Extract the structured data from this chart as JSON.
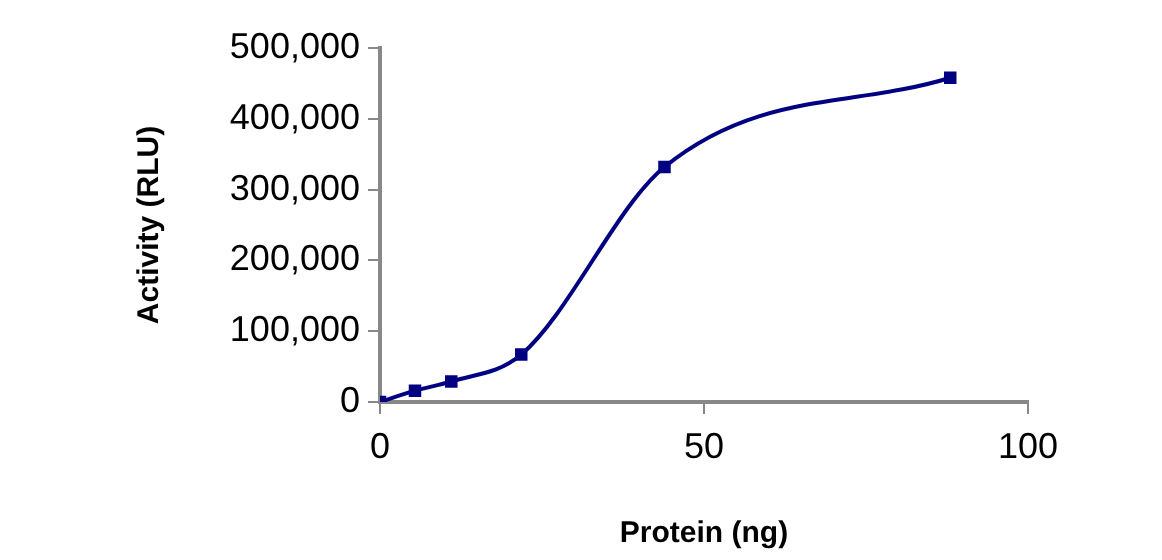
{
  "chart_data": {
    "type": "line",
    "xlabel": "Protein (ng)",
    "ylabel": "Activity (RLU)",
    "x": [
      0,
      5.4,
      11,
      21.8,
      43.9,
      88
    ],
    "series": [
      {
        "color": "#000080",
        "values": [
          0,
          16000,
          29000,
          67000,
          332000,
          458000
        ]
      }
    ],
    "xlim": [
      0,
      100
    ],
    "xticks": [
      0,
      50,
      100
    ],
    "ylim": [
      0,
      500000
    ],
    "yticks": [
      {
        "value": 0,
        "label": "0"
      },
      {
        "value": 100000,
        "label": "100,000"
      },
      {
        "value": 200000,
        "label": "200,000"
      },
      {
        "value": 300000,
        "label": "300,000"
      },
      {
        "value": 400000,
        "label": "400,000"
      },
      {
        "value": 500000,
        "label": "500,000"
      }
    ],
    "grid": false,
    "legend": false,
    "marker": "square",
    "line_style": "solid"
  }
}
